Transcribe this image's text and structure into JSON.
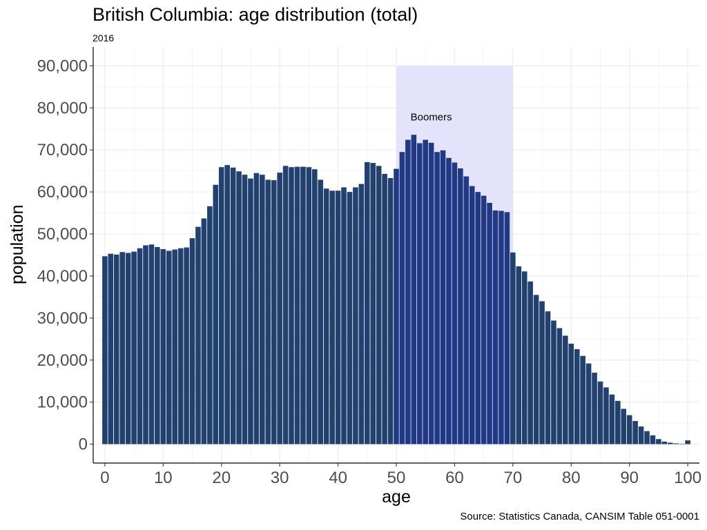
{
  "title": "British Columbia: age distribution (total)",
  "subtitle": "2016",
  "caption": "Source: Statistics Canada, CANSIM Table 051-0001",
  "chart_data": {
    "type": "bar",
    "xlabel": "age",
    "ylabel": "population",
    "xlim": [
      -2,
      102
    ],
    "ylim": [
      -4500,
      94500
    ],
    "x_ticks": [
      0,
      10,
      20,
      30,
      40,
      50,
      60,
      70,
      80,
      90,
      100
    ],
    "x_tick_labels": [
      "0",
      "10",
      "20",
      "30",
      "40",
      "50",
      "60",
      "70",
      "80",
      "90",
      "100"
    ],
    "y_ticks": [
      0,
      10000,
      20000,
      30000,
      40000,
      50000,
      60000,
      70000,
      80000,
      90000
    ],
    "y_tick_labels": [
      "0",
      "10,000",
      "20,000",
      "30,000",
      "40,000",
      "50,000",
      "60,000",
      "70,000",
      "80,000",
      "90,000"
    ],
    "grid": true,
    "bar_color": "#22416f",
    "highlight_bar_color": "#213885",
    "highlight": {
      "label": "Boomers",
      "x_range": [
        50,
        70
      ],
      "y_range": [
        0,
        90000
      ],
      "label_x": 56,
      "label_y": 77000,
      "fill": "#e3e3fb"
    },
    "ages": [
      0,
      1,
      2,
      3,
      4,
      5,
      6,
      7,
      8,
      9,
      10,
      11,
      12,
      13,
      14,
      15,
      16,
      17,
      18,
      19,
      20,
      21,
      22,
      23,
      24,
      25,
      26,
      27,
      28,
      29,
      30,
      31,
      32,
      33,
      34,
      35,
      36,
      37,
      38,
      39,
      40,
      41,
      42,
      43,
      44,
      45,
      46,
      47,
      48,
      49,
      50,
      51,
      52,
      53,
      54,
      55,
      56,
      57,
      58,
      59,
      60,
      61,
      62,
      63,
      64,
      65,
      66,
      67,
      68,
      69,
      70,
      71,
      72,
      73,
      74,
      75,
      76,
      77,
      78,
      79,
      80,
      81,
      82,
      83,
      84,
      85,
      86,
      87,
      88,
      89,
      90,
      91,
      92,
      93,
      94,
      95,
      96,
      97,
      98,
      99,
      100
    ],
    "values": [
      44700,
      45300,
      45100,
      45700,
      45500,
      45800,
      46600,
      47300,
      47500,
      46900,
      46400,
      46000,
      46300,
      46600,
      46800,
      49000,
      51700,
      53700,
      56600,
      61700,
      65900,
      66400,
      65800,
      64900,
      64100,
      63200,
      64500,
      64100,
      62900,
      62800,
      64600,
      66200,
      65900,
      66000,
      66000,
      65900,
      65400,
      62900,
      60800,
      60300,
      60300,
      61100,
      60000,
      61100,
      61900,
      67100,
      66900,
      66200,
      64300,
      63300,
      65500,
      69500,
      72400,
      73600,
      71600,
      72400,
      71700,
      69500,
      69900,
      68100,
      67000,
      65600,
      63700,
      61400,
      60000,
      59100,
      57400,
      55600,
      55500,
      55200,
      45600,
      42300,
      41100,
      38700,
      35500,
      34000,
      31600,
      29400,
      27600,
      25800,
      23900,
      22600,
      21000,
      19200,
      17000,
      14900,
      13500,
      11800,
      10300,
      8400,
      6900,
      5500,
      4200,
      3100,
      2100,
      1200,
      600,
      350,
      180,
      90,
      900
    ]
  }
}
